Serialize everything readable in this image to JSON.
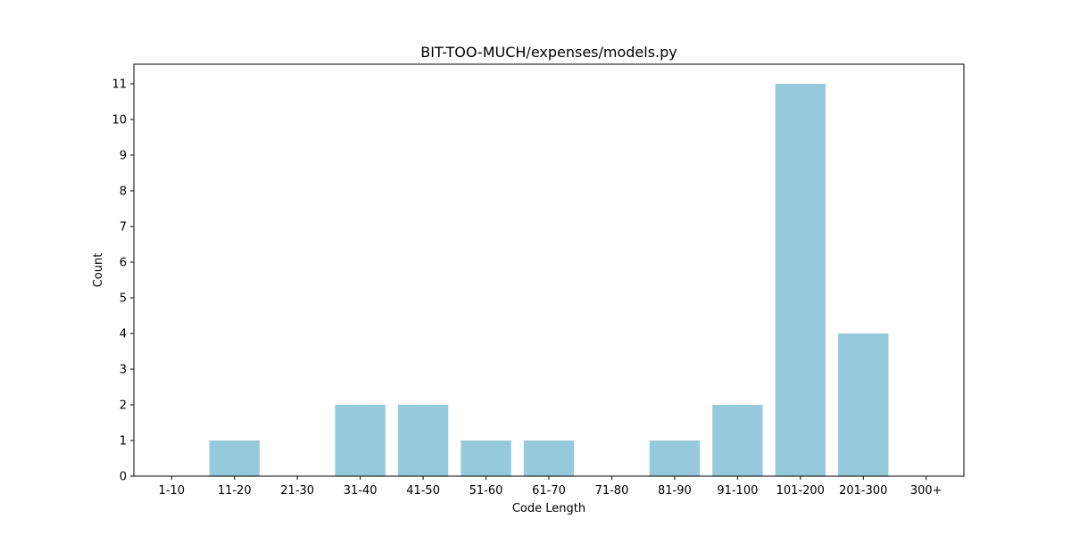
{
  "chart_data": {
    "type": "bar",
    "title": "BIT-TOO-MUCH/expenses/models.py",
    "xlabel": "Code Length",
    "ylabel": "Count",
    "categories": [
      "1-10",
      "11-20",
      "21-30",
      "31-40",
      "41-50",
      "51-60",
      "61-70",
      "71-80",
      "81-90",
      "91-100",
      "101-200",
      "201-300",
      "300+"
    ],
    "values": [
      0,
      1,
      0,
      2,
      2,
      1,
      1,
      0,
      1,
      2,
      11,
      4,
      0
    ],
    "ylim": [
      0,
      11.55
    ],
    "yticks": [
      0,
      1,
      2,
      3,
      4,
      5,
      6,
      7,
      8,
      9,
      10,
      11
    ],
    "grid": false,
    "bar_color": "#96c9dc"
  }
}
